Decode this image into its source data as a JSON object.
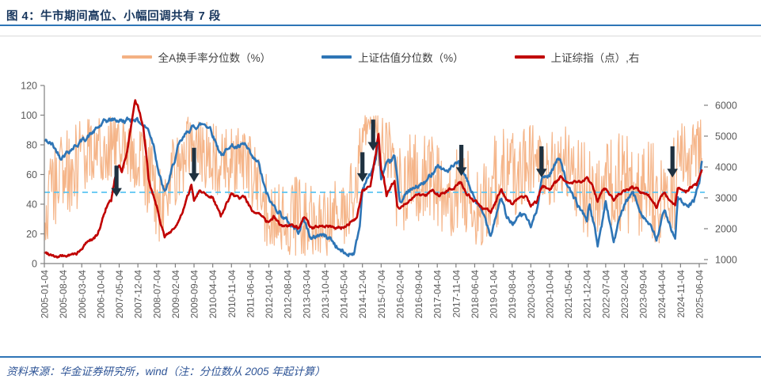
{
  "header": {
    "title": "图 4：牛市期间高位、小幅回调共有 7 段"
  },
  "footer": {
    "source": "资料来源：华金证券研究所，wind（注：分位数从 2005 年起计算）"
  },
  "legend": {
    "items": [
      {
        "label": "全A换手率分位数（%）",
        "color": "#F4B183"
      },
      {
        "label": "上证估值分位数（%）",
        "color": "#2E75B6"
      },
      {
        "label": "上证综指（点）,右",
        "color": "#C00000"
      }
    ]
  },
  "colors": {
    "title_text": "#17365D",
    "accent_rule": "#2E75B6",
    "footer_text": "#2E5496",
    "axis_text": "#595959",
    "axis_line": "#808080",
    "reference_dashed": "#5BC5F2",
    "arrow": "#1F3140",
    "turnover_series": "#F4B183",
    "valuation_series": "#2E75B6",
    "index_series": "#C00000"
  },
  "chart_data": {
    "type": "line",
    "title": "牛市期间高位、小幅回调共有 7 段",
    "x_axis": {
      "start_month": "2005-01",
      "end_month": "2025-07",
      "tick_step_months": 7,
      "tick_labels": [
        "2005-01-04",
        "2005-08-04",
        "2006-03-04",
        "2006-10-04",
        "2007-05-04",
        "2007-12-04",
        "2008-07-04",
        "2009-02-04",
        "2009-09-04",
        "2010-04-04",
        "2010-11-04",
        "2011-06-04",
        "2012-01-04",
        "2012-08-04",
        "2013-03-04",
        "2013-10-04",
        "2014-05-04",
        "2014-12-04",
        "2015-07-04",
        "2016-02-04",
        "2016-09-04",
        "2017-04-04",
        "2017-11-04",
        "2018-06-04",
        "2019-01-04",
        "2019-08-04",
        "2020-03-04",
        "2020-10-04",
        "2021-05-04",
        "2021-12-04",
        "2022-07-04",
        "2023-02-04",
        "2023-09-04",
        "2024-04-04",
        "2024-11-04",
        "2025-06-04"
      ]
    },
    "left_axis": {
      "label": "分位数（%）",
      "min": 0,
      "max": 120,
      "ticks": [
        0,
        20,
        40,
        60,
        80,
        100,
        120
      ]
    },
    "right_axis": {
      "label": "上证综指（点）",
      "min": 1000,
      "max": 6600,
      "ticks": [
        1000,
        2000,
        3000,
        4000,
        5000,
        6000
      ]
    },
    "reference_line": {
      "axis": "left",
      "value": 48,
      "style": "dashed"
    },
    "series": [
      {
        "name": "全A换手率分位数（%）",
        "axis": "left",
        "style": "noisy-envelope",
        "noise_seed": 7,
        "envelope_min_max_by_month": [
          [
            0,
            10,
            45
          ],
          [
            2,
            15,
            75
          ],
          [
            6,
            20,
            88
          ],
          [
            12,
            35,
            95
          ],
          [
            20,
            50,
            100
          ],
          [
            24,
            55,
            100
          ],
          [
            30,
            60,
            100
          ],
          [
            36,
            40,
            95
          ],
          [
            40,
            25,
            85
          ],
          [
            42,
            15,
            80
          ],
          [
            45,
            8,
            55
          ],
          [
            48,
            30,
            90
          ],
          [
            54,
            55,
            100
          ],
          [
            60,
            50,
            97
          ],
          [
            66,
            42,
            92
          ],
          [
            72,
            40,
            92
          ],
          [
            78,
            35,
            88
          ],
          [
            82,
            12,
            70
          ],
          [
            84,
            8,
            60
          ],
          [
            90,
            5,
            55
          ],
          [
            96,
            5,
            62
          ],
          [
            102,
            4,
            50
          ],
          [
            108,
            5,
            55
          ],
          [
            114,
            8,
            60
          ],
          [
            117,
            40,
            95
          ],
          [
            119,
            75,
            100
          ],
          [
            122,
            85,
            100
          ],
          [
            126,
            55,
            100
          ],
          [
            130,
            40,
            95
          ],
          [
            131,
            3,
            90
          ],
          [
            133,
            15,
            85
          ],
          [
            138,
            25,
            88
          ],
          [
            144,
            28,
            90
          ],
          [
            150,
            20,
            85
          ],
          [
            156,
            15,
            80
          ],
          [
            162,
            10,
            72
          ],
          [
            168,
            18,
            85
          ],
          [
            171,
            30,
            92
          ],
          [
            174,
            25,
            88
          ],
          [
            180,
            28,
            92
          ],
          [
            186,
            40,
            97
          ],
          [
            192,
            35,
            95
          ],
          [
            198,
            30,
            92
          ],
          [
            204,
            12,
            80
          ],
          [
            210,
            18,
            85
          ],
          [
            216,
            22,
            88
          ],
          [
            222,
            15,
            82
          ],
          [
            228,
            12,
            85
          ],
          [
            231,
            8,
            70
          ],
          [
            234,
            10,
            75
          ],
          [
            236,
            20,
            90
          ],
          [
            237,
            70,
            100
          ],
          [
            239,
            55,
            98
          ],
          [
            242,
            45,
            95
          ],
          [
            246,
            65,
            100
          ]
        ]
      },
      {
        "name": "上证估值分位数（%）",
        "axis": "left",
        "style": "smooth",
        "anchors_month_value": [
          [
            0,
            83
          ],
          [
            3,
            80
          ],
          [
            6,
            72
          ],
          [
            9,
            76
          ],
          [
            12,
            80
          ],
          [
            18,
            88
          ],
          [
            23,
            96
          ],
          [
            26,
            97
          ],
          [
            30,
            96
          ],
          [
            34,
            98
          ],
          [
            36,
            95
          ],
          [
            39,
            90
          ],
          [
            41,
            80
          ],
          [
            43,
            60
          ],
          [
            45,
            47
          ],
          [
            47,
            58
          ],
          [
            50,
            78
          ],
          [
            54,
            90
          ],
          [
            57,
            93
          ],
          [
            60,
            94
          ],
          [
            62,
            92
          ],
          [
            65,
            78
          ],
          [
            67,
            72
          ],
          [
            69,
            80
          ],
          [
            73,
            78
          ],
          [
            75,
            80
          ],
          [
            78,
            70
          ],
          [
            80,
            68
          ],
          [
            83,
            47
          ],
          [
            85,
            40
          ],
          [
            88,
            35
          ],
          [
            90,
            30
          ],
          [
            93,
            25
          ],
          [
            95,
            22
          ],
          [
            97,
            30
          ],
          [
            100,
            16
          ],
          [
            103,
            20
          ],
          [
            107,
            17
          ],
          [
            110,
            10
          ],
          [
            113,
            6
          ],
          [
            116,
            8
          ],
          [
            118,
            25
          ],
          [
            119,
            50
          ],
          [
            120,
            55
          ],
          [
            122,
            60
          ],
          [
            124,
            70
          ],
          [
            125,
            83
          ],
          [
            126,
            57
          ],
          [
            128,
            65
          ],
          [
            131,
            72
          ],
          [
            133,
            42
          ],
          [
            136,
            48
          ],
          [
            140,
            52
          ],
          [
            143,
            55
          ],
          [
            147,
            67
          ],
          [
            150,
            62
          ],
          [
            153,
            65
          ],
          [
            155,
            67
          ],
          [
            157,
            60
          ],
          [
            160,
            48
          ],
          [
            162,
            40
          ],
          [
            165,
            30
          ],
          [
            167,
            20
          ],
          [
            170,
            40
          ],
          [
            171,
            45
          ],
          [
            173,
            30
          ],
          [
            175,
            27
          ],
          [
            178,
            32
          ],
          [
            180,
            33
          ],
          [
            182,
            24
          ],
          [
            184,
            35
          ],
          [
            186,
            57
          ],
          [
            189,
            60
          ],
          [
            192,
            70
          ],
          [
            193,
            72
          ],
          [
            196,
            50
          ],
          [
            198,
            45
          ],
          [
            200,
            38
          ],
          [
            203,
            30
          ],
          [
            204,
            40
          ],
          [
            207,
            13
          ],
          [
            209,
            30
          ],
          [
            210,
            42
          ],
          [
            213,
            15
          ],
          [
            216,
            35
          ],
          [
            220,
            48
          ],
          [
            223,
            36
          ],
          [
            227,
            24
          ],
          [
            229,
            16
          ],
          [
            232,
            35
          ],
          [
            234,
            28
          ],
          [
            236,
            15
          ],
          [
            237,
            45
          ],
          [
            239,
            40
          ],
          [
            241,
            37
          ],
          [
            243,
            42
          ],
          [
            245,
            55
          ],
          [
            246,
            68
          ]
        ]
      },
      {
        "name": "上证综指（点）,右",
        "axis": "right",
        "style": "smooth",
        "anchors_month_value": [
          [
            0,
            1220
          ],
          [
            3,
            1180
          ],
          [
            5,
            1080
          ],
          [
            8,
            1120
          ],
          [
            11,
            1160
          ],
          [
            14,
            1300
          ],
          [
            16,
            1600
          ],
          [
            18,
            1670
          ],
          [
            20,
            1800
          ],
          [
            23,
            2670
          ],
          [
            25,
            2900
          ],
          [
            27,
            3900
          ],
          [
            28,
            4100
          ],
          [
            29,
            3850
          ],
          [
            31,
            4500
          ],
          [
            33,
            5600
          ],
          [
            34,
            6100
          ],
          [
            35,
            5950
          ],
          [
            37,
            5300
          ],
          [
            39,
            3600
          ],
          [
            42,
            2750
          ],
          [
            45,
            1720
          ],
          [
            47,
            1900
          ],
          [
            50,
            2150
          ],
          [
            52,
            2600
          ],
          [
            55,
            3400
          ],
          [
            56,
            2950
          ],
          [
            58,
            3250
          ],
          [
            61,
            3100
          ],
          [
            63,
            3050
          ],
          [
            66,
            2400
          ],
          [
            70,
            3150
          ],
          [
            73,
            2950
          ],
          [
            75,
            3050
          ],
          [
            78,
            2550
          ],
          [
            82,
            2350
          ],
          [
            83,
            2200
          ],
          [
            86,
            2400
          ],
          [
            89,
            2050
          ],
          [
            92,
            2100
          ],
          [
            95,
            2000
          ],
          [
            97,
            2400
          ],
          [
            100,
            1980
          ],
          [
            103,
            2150
          ],
          [
            106,
            2100
          ],
          [
            109,
            2050
          ],
          [
            111,
            2030
          ],
          [
            114,
            2180
          ],
          [
            117,
            2400
          ],
          [
            119,
            3200
          ],
          [
            120,
            3250
          ],
          [
            122,
            3350
          ],
          [
            124,
            4400
          ],
          [
            125,
            5100
          ],
          [
            126,
            3900
          ],
          [
            127,
            3650
          ],
          [
            128,
            3050
          ],
          [
            130,
            3450
          ],
          [
            131,
            3550
          ],
          [
            132,
            2750
          ],
          [
            133,
            2700
          ],
          [
            136,
            2900
          ],
          [
            139,
            3050
          ],
          [
            142,
            3100
          ],
          [
            145,
            3200
          ],
          [
            148,
            3100
          ],
          [
            151,
            3300
          ],
          [
            154,
            3400
          ],
          [
            156,
            3500
          ],
          [
            158,
            3150
          ],
          [
            161,
            2850
          ],
          [
            164,
            2700
          ],
          [
            167,
            2500
          ],
          [
            170,
            3100
          ],
          [
            171,
            3250
          ],
          [
            173,
            2900
          ],
          [
            175,
            2820
          ],
          [
            178,
            2950
          ],
          [
            180,
            3080
          ],
          [
            182,
            2750
          ],
          [
            184,
            2850
          ],
          [
            186,
            3380
          ],
          [
            189,
            3300
          ],
          [
            192,
            3550
          ],
          [
            193,
            3700
          ],
          [
            196,
            3500
          ],
          [
            199,
            3520
          ],
          [
            202,
            3570
          ],
          [
            203,
            3640
          ],
          [
            205,
            3450
          ],
          [
            207,
            2890
          ],
          [
            209,
            3250
          ],
          [
            210,
            3280
          ],
          [
            212,
            3050
          ],
          [
            213,
            2920
          ],
          [
            215,
            3150
          ],
          [
            218,
            3290
          ],
          [
            220,
            3350
          ],
          [
            223,
            3180
          ],
          [
            226,
            3050
          ],
          [
            227,
            2950
          ],
          [
            229,
            2700
          ],
          [
            231,
            3050
          ],
          [
            232,
            3150
          ],
          [
            234,
            2950
          ],
          [
            236,
            2720
          ],
          [
            237,
            3350
          ],
          [
            238,
            3280
          ],
          [
            240,
            3220
          ],
          [
            242,
            3350
          ],
          [
            244,
            3450
          ],
          [
            246,
            3950
          ]
        ]
      }
    ],
    "annotations": {
      "note": "黑色向下箭头标注牛市期间 7 段高位小幅回调",
      "arrows_month_tail_tip_left_axis": [
        {
          "month": 27,
          "tail": 66,
          "tip": 45
        },
        {
          "month": 56,
          "tail": 78,
          "tip": 55
        },
        {
          "month": 119,
          "tail": 75,
          "tip": 55
        },
        {
          "month": 123,
          "tail": 97,
          "tip": 76
        },
        {
          "month": 156,
          "tail": 80,
          "tip": 59
        },
        {
          "month": 186,
          "tail": 79,
          "tip": 58
        },
        {
          "month": 235,
          "tail": 79,
          "tip": 58
        }
      ]
    }
  }
}
